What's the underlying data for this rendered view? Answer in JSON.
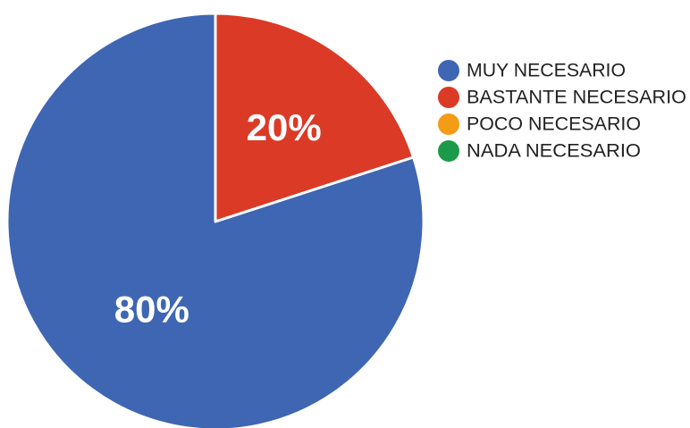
{
  "chart_data": {
    "type": "pie",
    "categories": [
      "MUY NECESARIO",
      "BASTANTE NECESARIO",
      "POCO NECESARIO",
      "NADA NECESARIO"
    ],
    "values": [
      80,
      20,
      0,
      0
    ],
    "data_labels": [
      "80%",
      "20%",
      "",
      ""
    ],
    "colors": [
      "#3e66b2",
      "#db3a26",
      "#f59c16",
      "#1d9a49"
    ],
    "legend_position": "right"
  }
}
